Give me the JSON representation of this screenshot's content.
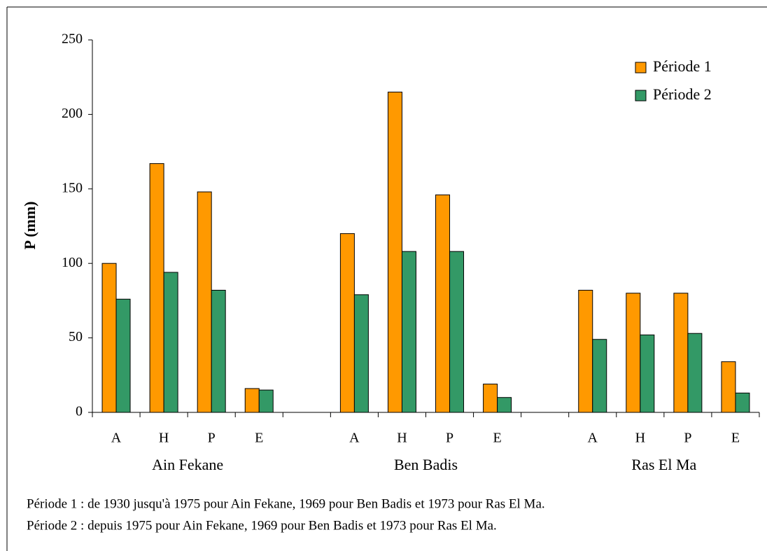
{
  "chart_data": {
    "type": "bar",
    "ylabel": "P (mm)",
    "categories": [
      "A",
      "H",
      "P",
      "E",
      null,
      "A",
      "H",
      "P",
      "E",
      null,
      "A",
      "H",
      "P",
      "E"
    ],
    "groups": [
      "Ain Fekane",
      "Ben Badis",
      "Ras El Ma"
    ],
    "series": [
      {
        "name": "Période 1",
        "color": "#ff9900",
        "values": [
          100,
          167,
          148,
          16,
          null,
          120,
          215,
          146,
          19,
          null,
          82,
          80,
          80,
          34
        ]
      },
      {
        "name": "Période 2",
        "color": "#339966",
        "values": [
          76,
          94,
          82,
          15,
          null,
          79,
          108,
          108,
          10,
          null,
          49,
          52,
          53,
          13
        ]
      }
    ],
    "ylim": [
      0,
      250
    ],
    "yticks": [
      0,
      50,
      100,
      150,
      200,
      250
    ],
    "legend": "top-right",
    "notes": [
      "Période 1 : de 1930 jusqu'à 1975 pour Ain Fekane, 1969 pour Ben Badis et 1973 pour Ras El Ma.",
      "Période 2 : depuis 1975 pour Ain Fekane, 1969 pour Ben Badis et 1973 pour Ras El Ma."
    ]
  }
}
